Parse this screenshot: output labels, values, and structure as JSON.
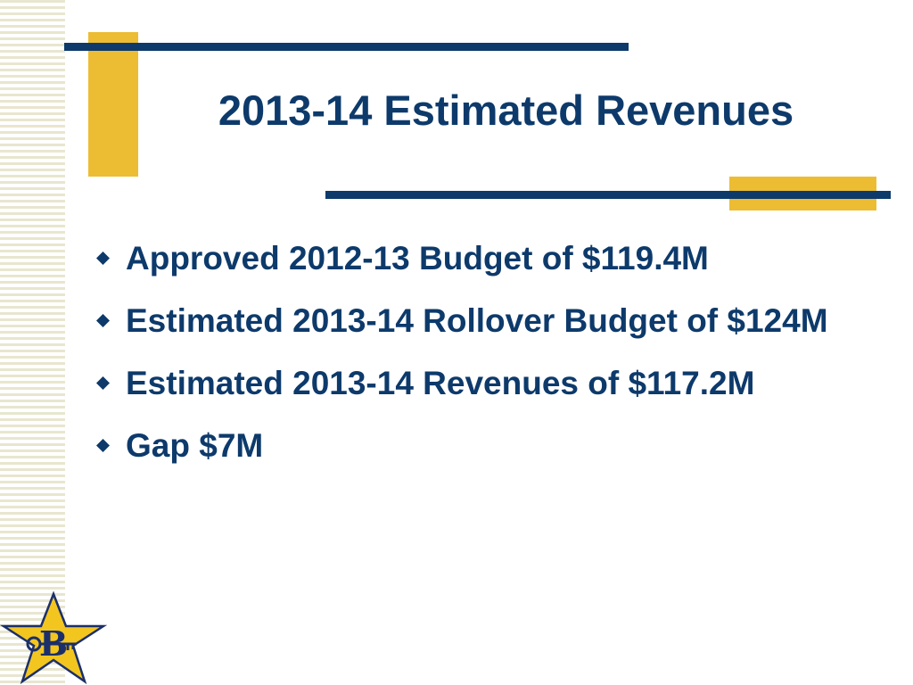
{
  "slide": {
    "title": "2013-14 Estimated Revenues",
    "bullets": [
      "Approved 2012-13 Budget of $119.4M",
      "Estimated 2013-14 Rollover Budget of $124M",
      "Estimated 2013-14 Revenues of $117.2M",
      "Gap $7M"
    ],
    "logo_text": "B"
  },
  "colors": {
    "navy": "#0d3a6b",
    "gold": "#ecbd32",
    "stripe": "#e8e6cf"
  },
  "icons": {
    "bullet": "diamond-bullet-icon",
    "logo": "star-key-logo-icon"
  }
}
